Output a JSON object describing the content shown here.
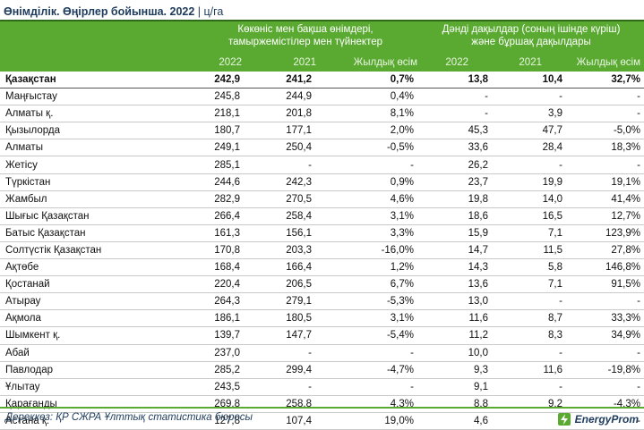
{
  "title": {
    "main": "Өнімділік. Өңірлер бойынша. 2022",
    "unit": "| ц/га"
  },
  "header": {
    "group1": [
      "Көкөніс мен бақша өнімдері,",
      "тамыржемістілер мен түйнектер"
    ],
    "group2": [
      "Дәнді дақылдар (соның ішінде күріш)",
      "және бұршақ дақылдары"
    ],
    "sub": [
      "2022",
      "2021",
      "Жылдық өсім",
      "2022",
      "2021",
      "Жылдық өсім"
    ]
  },
  "rows": [
    {
      "name": "Қазақстан",
      "v": [
        "242,9",
        "241,2",
        "0,7%",
        "13,8",
        "10,4",
        "32,7%"
      ],
      "total": true
    },
    {
      "name": "Маңғыстау",
      "v": [
        "245,8",
        "244,9",
        "0,4%",
        "-",
        "-",
        "-"
      ]
    },
    {
      "name": "Алматы қ.",
      "v": [
        "218,1",
        "201,8",
        "8,1%",
        "-",
        "3,9",
        "-"
      ]
    },
    {
      "name": "Қызылорда",
      "v": [
        "180,7",
        "177,1",
        "2,0%",
        "45,3",
        "47,7",
        "-5,0%"
      ]
    },
    {
      "name": "Алматы",
      "v": [
        "249,1",
        "250,4",
        "-0,5%",
        "33,6",
        "28,4",
        "18,3%"
      ]
    },
    {
      "name": "Жетісу",
      "v": [
        "285,1",
        "-",
        "-",
        "26,2",
        "-",
        "-"
      ]
    },
    {
      "name": "Түркістан",
      "v": [
        "244,6",
        "242,3",
        "0,9%",
        "23,7",
        "19,9",
        "19,1%"
      ]
    },
    {
      "name": "Жамбыл",
      "v": [
        "282,9",
        "270,5",
        "4,6%",
        "19,8",
        "14,0",
        "41,4%"
      ]
    },
    {
      "name": "Шығыс Қазақстан",
      "v": [
        "266,4",
        "258,4",
        "3,1%",
        "18,6",
        "16,5",
        "12,7%"
      ]
    },
    {
      "name": "Батыс Қазақстан",
      "v": [
        "161,3",
        "156,1",
        "3,3%",
        "15,9",
        "7,1",
        "123,9%"
      ]
    },
    {
      "name": "Солтүстік Қазақстан",
      "v": [
        "170,8",
        "203,3",
        "-16,0%",
        "14,7",
        "11,5",
        "27,8%"
      ]
    },
    {
      "name": "Ақтөбе",
      "v": [
        "168,4",
        "166,4",
        "1,2%",
        "14,3",
        "5,8",
        "146,8%"
      ]
    },
    {
      "name": "Қостанай",
      "v": [
        "220,4",
        "206,5",
        "6,7%",
        "13,6",
        "7,1",
        "91,5%"
      ]
    },
    {
      "name": "Атырау",
      "v": [
        "264,3",
        "279,1",
        "-5,3%",
        "13,0",
        "-",
        "-"
      ]
    },
    {
      "name": "Ақмола",
      "v": [
        "186,1",
        "180,5",
        "3,1%",
        "11,6",
        "8,7",
        "33,3%"
      ]
    },
    {
      "name": "Шымкент қ.",
      "v": [
        "139,7",
        "147,7",
        "-5,4%",
        "11,2",
        "8,3",
        "34,9%"
      ]
    },
    {
      "name": "Абай",
      "v": [
        "237,0",
        "-",
        "-",
        "10,0",
        "-",
        "-"
      ]
    },
    {
      "name": "Павлодар",
      "v": [
        "285,2",
        "299,4",
        "-4,7%",
        "9,3",
        "11,6",
        "-19,8%"
      ]
    },
    {
      "name": "Ұлытау",
      "v": [
        "243,5",
        "-",
        "-",
        "9,1",
        "-",
        "-"
      ]
    },
    {
      "name": "Қарағанды",
      "v": [
        "269,8",
        "258,8",
        "4,3%",
        "8,8",
        "9,2",
        "-4,3%"
      ]
    },
    {
      "name": "Астана қ.",
      "v": [
        "127,8",
        "107,4",
        "19,0%",
        "4,6",
        "-",
        "-"
      ]
    }
  ],
  "footer": {
    "source": "Дереккөз: ҚР СЖРА Ұлттық статистика бюросы",
    "logo": "EnergyProm"
  },
  "colors": {
    "header_green": "#5aaa32",
    "text_navy": "#1d3b5c"
  }
}
